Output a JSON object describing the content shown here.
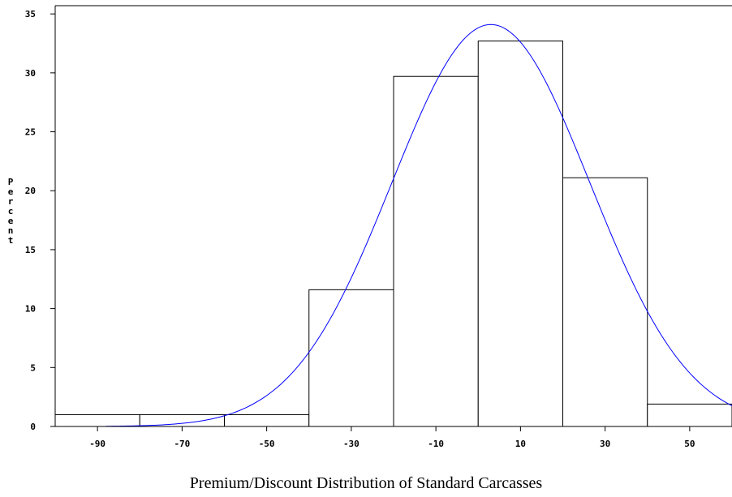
{
  "chart_data": {
    "type": "bar",
    "title": "",
    "xlabel": "Premium/Discount Distribution of Standard Carcasses",
    "ylabel": "Percent",
    "bins": [
      {
        "from": -100,
        "to": -80,
        "value": 1.0
      },
      {
        "from": -80,
        "to": -60,
        "value": 1.0
      },
      {
        "from": -60,
        "to": -40,
        "value": 1.0
      },
      {
        "from": -40,
        "to": -20,
        "value": 11.6
      },
      {
        "from": -20,
        "to": 0,
        "value": 29.7
      },
      {
        "from": 0,
        "to": 20,
        "value": 32.7
      },
      {
        "from": 20,
        "to": 40,
        "value": 21.1
      },
      {
        "from": 40,
        "to": 60,
        "value": 1.9
      }
    ],
    "x_ticks": [
      "-90",
      "-70",
      "-50",
      "-30",
      "-10",
      "10",
      "30",
      "50"
    ],
    "x_tick_values": [
      -90,
      -70,
      -50,
      -30,
      -10,
      10,
      30,
      50
    ],
    "y_ticks": [
      "0",
      "5",
      "10",
      "15",
      "20",
      "25",
      "30",
      "35"
    ],
    "y_tick_values": [
      0,
      5,
      10,
      15,
      20,
      25,
      30,
      35
    ],
    "xlim": [
      -100,
      60
    ],
    "ylim": [
      0,
      35.7
    ],
    "normal_curve": {
      "mean": 3,
      "sd": 23.4,
      "peak": 34.1,
      "color": "#0000ff"
    },
    "bar_fill": "#ffffff",
    "bar_stroke": "#000000",
    "grid": false
  }
}
